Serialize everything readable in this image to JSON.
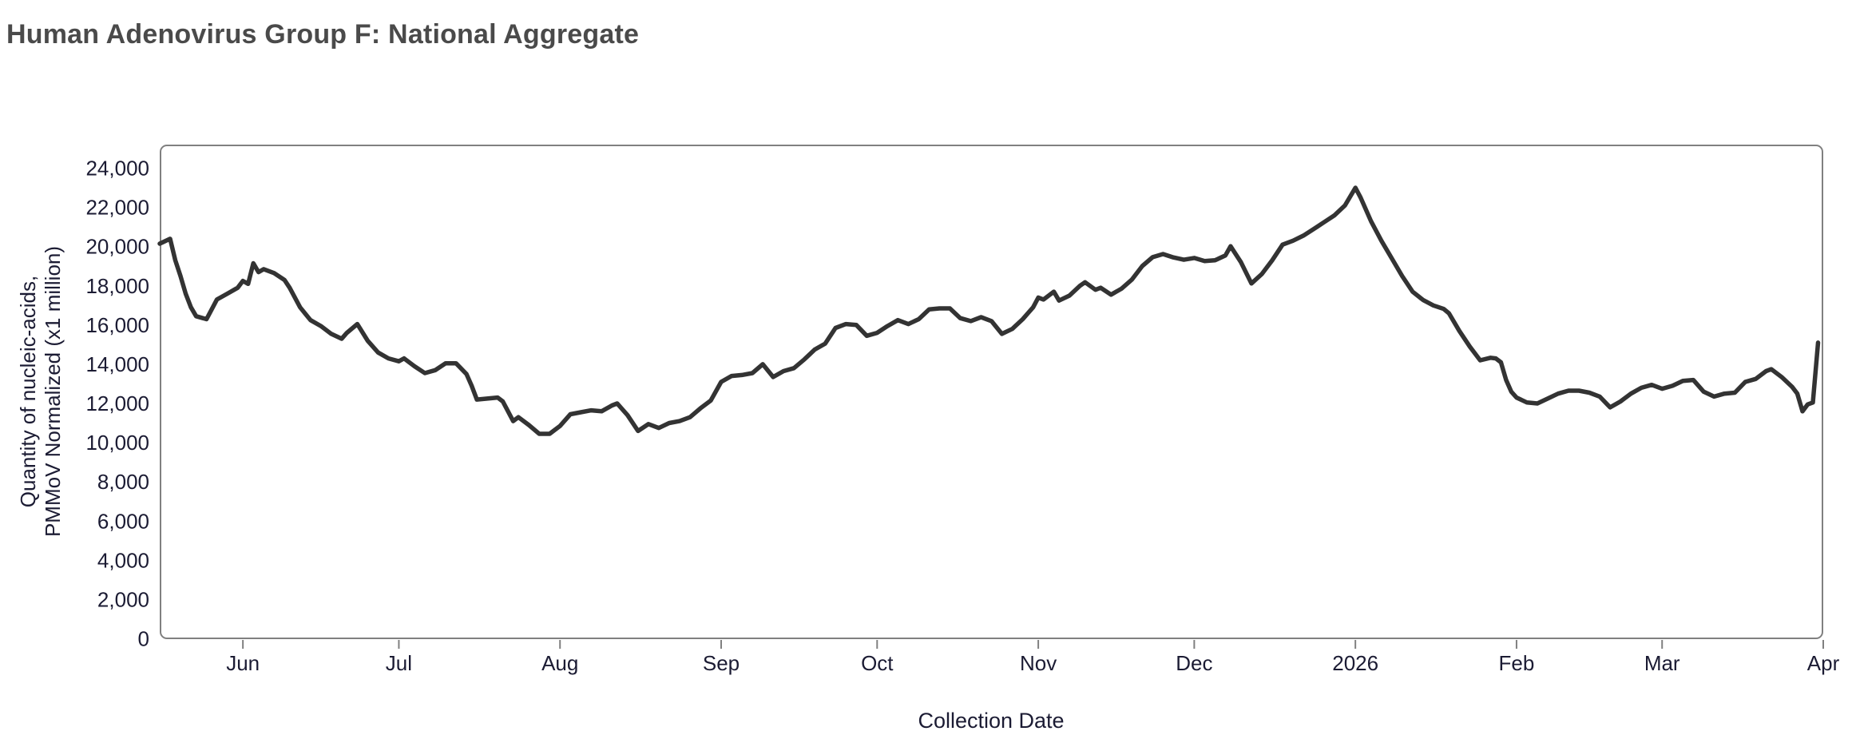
{
  "title": "Human Adenovirus Group F: National Aggregate",
  "colors": {
    "title_text": "#4a4a4a",
    "axis_text": "#1b1b33",
    "frame": "#808080",
    "line": "#333333",
    "background": "#ffffff"
  },
  "chart_data": {
    "type": "line",
    "title": "Human Adenovirus Group F: National Aggregate",
    "xlabel": "Collection Date",
    "ylabel_line1": "Quantity of nucleic-acids,",
    "ylabel_line2": "PMMoV Normalized (x1 million)",
    "legend": "none",
    "grid": false,
    "frame": "rounded rectangle, gray",
    "x_range": [
      "2025-05-16",
      "2026-04-01"
    ],
    "ylim": [
      0,
      25200
    ],
    "y_ticks": [
      {
        "value": 0,
        "label": "0"
      },
      {
        "value": 2000,
        "label": "2,000"
      },
      {
        "value": 4000,
        "label": "4,000"
      },
      {
        "value": 6000,
        "label": "6,000"
      },
      {
        "value": 8000,
        "label": "8,000"
      },
      {
        "value": 10000,
        "label": "10,000"
      },
      {
        "value": 12000,
        "label": "12,000"
      },
      {
        "value": 14000,
        "label": "14,000"
      },
      {
        "value": 16000,
        "label": "16,000"
      },
      {
        "value": 18000,
        "label": "18,000"
      },
      {
        "value": 20000,
        "label": "20,000"
      },
      {
        "value": 22000,
        "label": "22,000"
      },
      {
        "value": 24000,
        "label": "24,000"
      }
    ],
    "x_ticks": [
      {
        "date": "2025-06-01",
        "label": "Jun"
      },
      {
        "date": "2025-07-01",
        "label": "Jul"
      },
      {
        "date": "2025-08-01",
        "label": "Aug"
      },
      {
        "date": "2025-09-01",
        "label": "Sep"
      },
      {
        "date": "2025-10-01",
        "label": "Oct"
      },
      {
        "date": "2025-11-01",
        "label": "Nov"
      },
      {
        "date": "2025-12-01",
        "label": "Dec"
      },
      {
        "date": "2026-01-01",
        "label": "2026"
      },
      {
        "date": "2026-02-01",
        "label": "Feb"
      },
      {
        "date": "2026-03-01",
        "label": "Mar"
      },
      {
        "date": "2026-04-01",
        "label": "Apr"
      }
    ],
    "series": [
      {
        "name": "National Aggregate",
        "points": [
          [
            "2025-05-16",
            20150
          ],
          [
            "2025-05-18",
            20400
          ],
          [
            "2025-05-19",
            19300
          ],
          [
            "2025-05-20",
            18500
          ],
          [
            "2025-05-21",
            17600
          ],
          [
            "2025-05-22",
            16900
          ],
          [
            "2025-05-23",
            16450
          ],
          [
            "2025-05-25",
            16300
          ],
          [
            "2025-05-27",
            17300
          ],
          [
            "2025-05-29",
            17600
          ],
          [
            "2025-05-31",
            17900
          ],
          [
            "2025-06-01",
            18250
          ],
          [
            "2025-06-02",
            18100
          ],
          [
            "2025-06-03",
            19150
          ],
          [
            "2025-06-04",
            18700
          ],
          [
            "2025-06-05",
            18850
          ],
          [
            "2025-06-07",
            18650
          ],
          [
            "2025-06-09",
            18300
          ],
          [
            "2025-06-10",
            17900
          ],
          [
            "2025-06-12",
            16900
          ],
          [
            "2025-06-14",
            16250
          ],
          [
            "2025-06-16",
            15950
          ],
          [
            "2025-06-18",
            15550
          ],
          [
            "2025-06-20",
            15300
          ],
          [
            "2025-06-21",
            15600
          ],
          [
            "2025-06-23",
            16050
          ],
          [
            "2025-06-25",
            15200
          ],
          [
            "2025-06-27",
            14600
          ],
          [
            "2025-06-29",
            14300
          ],
          [
            "2025-07-01",
            14150
          ],
          [
            "2025-07-02",
            14300
          ],
          [
            "2025-07-04",
            13900
          ],
          [
            "2025-07-06",
            13550
          ],
          [
            "2025-07-08",
            13700
          ],
          [
            "2025-07-10",
            14050
          ],
          [
            "2025-07-12",
            14050
          ],
          [
            "2025-07-14",
            13500
          ],
          [
            "2025-07-15",
            12900
          ],
          [
            "2025-07-16",
            12200
          ],
          [
            "2025-07-18",
            12250
          ],
          [
            "2025-07-20",
            12300
          ],
          [
            "2025-07-21",
            12100
          ],
          [
            "2025-07-23",
            11100
          ],
          [
            "2025-07-24",
            11300
          ],
          [
            "2025-07-26",
            10900
          ],
          [
            "2025-07-28",
            10450
          ],
          [
            "2025-07-30",
            10450
          ],
          [
            "2025-08-01",
            10850
          ],
          [
            "2025-08-03",
            11450
          ],
          [
            "2025-08-05",
            11550
          ],
          [
            "2025-08-07",
            11650
          ],
          [
            "2025-08-09",
            11600
          ],
          [
            "2025-08-11",
            11900
          ],
          [
            "2025-08-12",
            12000
          ],
          [
            "2025-08-14",
            11400
          ],
          [
            "2025-08-16",
            10600
          ],
          [
            "2025-08-18",
            10950
          ],
          [
            "2025-08-20",
            10750
          ],
          [
            "2025-08-22",
            11000
          ],
          [
            "2025-08-24",
            11100
          ],
          [
            "2025-08-26",
            11300
          ],
          [
            "2025-08-28",
            11750
          ],
          [
            "2025-08-30",
            12150
          ],
          [
            "2025-09-01",
            13100
          ],
          [
            "2025-09-03",
            13400
          ],
          [
            "2025-09-05",
            13450
          ],
          [
            "2025-09-07",
            13550
          ],
          [
            "2025-09-09",
            14000
          ],
          [
            "2025-09-11",
            13350
          ],
          [
            "2025-09-13",
            13650
          ],
          [
            "2025-09-15",
            13800
          ],
          [
            "2025-09-17",
            14250
          ],
          [
            "2025-09-19",
            14750
          ],
          [
            "2025-09-21",
            15050
          ],
          [
            "2025-09-23",
            15850
          ],
          [
            "2025-09-25",
            16050
          ],
          [
            "2025-09-27",
            16000
          ],
          [
            "2025-09-29",
            15450
          ],
          [
            "2025-10-01",
            15600
          ],
          [
            "2025-10-03",
            15950
          ],
          [
            "2025-10-05",
            16250
          ],
          [
            "2025-10-07",
            16050
          ],
          [
            "2025-10-09",
            16300
          ],
          [
            "2025-10-11",
            16800
          ],
          [
            "2025-10-13",
            16850
          ],
          [
            "2025-10-15",
            16850
          ],
          [
            "2025-10-17",
            16350
          ],
          [
            "2025-10-19",
            16200
          ],
          [
            "2025-10-21",
            16400
          ],
          [
            "2025-10-23",
            16200
          ],
          [
            "2025-10-25",
            15550
          ],
          [
            "2025-10-27",
            15800
          ],
          [
            "2025-10-29",
            16300
          ],
          [
            "2025-10-30",
            16600
          ],
          [
            "2025-10-31",
            16900
          ],
          [
            "2025-11-01",
            17400
          ],
          [
            "2025-11-02",
            17300
          ],
          [
            "2025-11-04",
            17700
          ],
          [
            "2025-11-05",
            17250
          ],
          [
            "2025-11-07",
            17500
          ],
          [
            "2025-11-09",
            18000
          ],
          [
            "2025-11-10",
            18180
          ],
          [
            "2025-11-12",
            17800
          ],
          [
            "2025-11-13",
            17900
          ],
          [
            "2025-11-15",
            17550
          ],
          [
            "2025-11-17",
            17850
          ],
          [
            "2025-11-19",
            18320
          ],
          [
            "2025-11-21",
            19010
          ],
          [
            "2025-11-23",
            19460
          ],
          [
            "2025-11-25",
            19620
          ],
          [
            "2025-11-27",
            19450
          ],
          [
            "2025-11-29",
            19330
          ],
          [
            "2025-12-01",
            19420
          ],
          [
            "2025-12-03",
            19260
          ],
          [
            "2025-12-05",
            19300
          ],
          [
            "2025-12-07",
            19550
          ],
          [
            "2025-12-08",
            20020
          ],
          [
            "2025-12-10",
            19200
          ],
          [
            "2025-12-12",
            18120
          ],
          [
            "2025-12-14",
            18600
          ],
          [
            "2025-12-16",
            19300
          ],
          [
            "2025-12-18",
            20100
          ],
          [
            "2025-12-20",
            20300
          ],
          [
            "2025-12-22",
            20560
          ],
          [
            "2025-12-24",
            20900
          ],
          [
            "2025-12-26",
            21250
          ],
          [
            "2025-12-28",
            21600
          ],
          [
            "2025-12-30",
            22100
          ],
          [
            "2026-01-01",
            23000
          ],
          [
            "2026-01-02",
            22500
          ],
          [
            "2026-01-04",
            21300
          ],
          [
            "2026-01-06",
            20300
          ],
          [
            "2026-01-08",
            19400
          ],
          [
            "2026-01-10",
            18500
          ],
          [
            "2026-01-12",
            17700
          ],
          [
            "2026-01-14",
            17280
          ],
          [
            "2026-01-16",
            17000
          ],
          [
            "2026-01-18",
            16820
          ],
          [
            "2026-01-19",
            16600
          ],
          [
            "2026-01-21",
            15700
          ],
          [
            "2026-01-23",
            14900
          ],
          [
            "2026-01-25",
            14200
          ],
          [
            "2026-01-27",
            14330
          ],
          [
            "2026-01-28",
            14300
          ],
          [
            "2026-01-29",
            14100
          ],
          [
            "2026-01-30",
            13200
          ],
          [
            "2026-01-31",
            12600
          ],
          [
            "2026-02-01",
            12300
          ],
          [
            "2026-02-03",
            12050
          ],
          [
            "2026-02-05",
            12000
          ],
          [
            "2026-02-07",
            12250
          ],
          [
            "2026-02-09",
            12500
          ],
          [
            "2026-02-11",
            12650
          ],
          [
            "2026-02-13",
            12650
          ],
          [
            "2026-02-15",
            12550
          ],
          [
            "2026-02-17",
            12350
          ],
          [
            "2026-02-19",
            11800
          ],
          [
            "2026-02-21",
            12100
          ],
          [
            "2026-02-23",
            12500
          ],
          [
            "2026-02-25",
            12800
          ],
          [
            "2026-02-27",
            12950
          ],
          [
            "2026-03-01",
            12750
          ],
          [
            "2026-03-03",
            12900
          ],
          [
            "2026-03-05",
            13150
          ],
          [
            "2026-03-07",
            13200
          ],
          [
            "2026-03-09",
            12600
          ],
          [
            "2026-03-11",
            12350
          ],
          [
            "2026-03-13",
            12500
          ],
          [
            "2026-03-15",
            12550
          ],
          [
            "2026-03-17",
            13100
          ],
          [
            "2026-03-19",
            13250
          ],
          [
            "2026-03-21",
            13650
          ],
          [
            "2026-03-22",
            13750
          ],
          [
            "2026-03-24",
            13350
          ],
          [
            "2026-03-26",
            12850
          ],
          [
            "2026-03-27",
            12500
          ],
          [
            "2026-03-28",
            11600
          ],
          [
            "2026-03-29",
            11950
          ],
          [
            "2026-03-30",
            12050
          ],
          [
            "2026-03-31",
            15100
          ]
        ]
      }
    ]
  }
}
